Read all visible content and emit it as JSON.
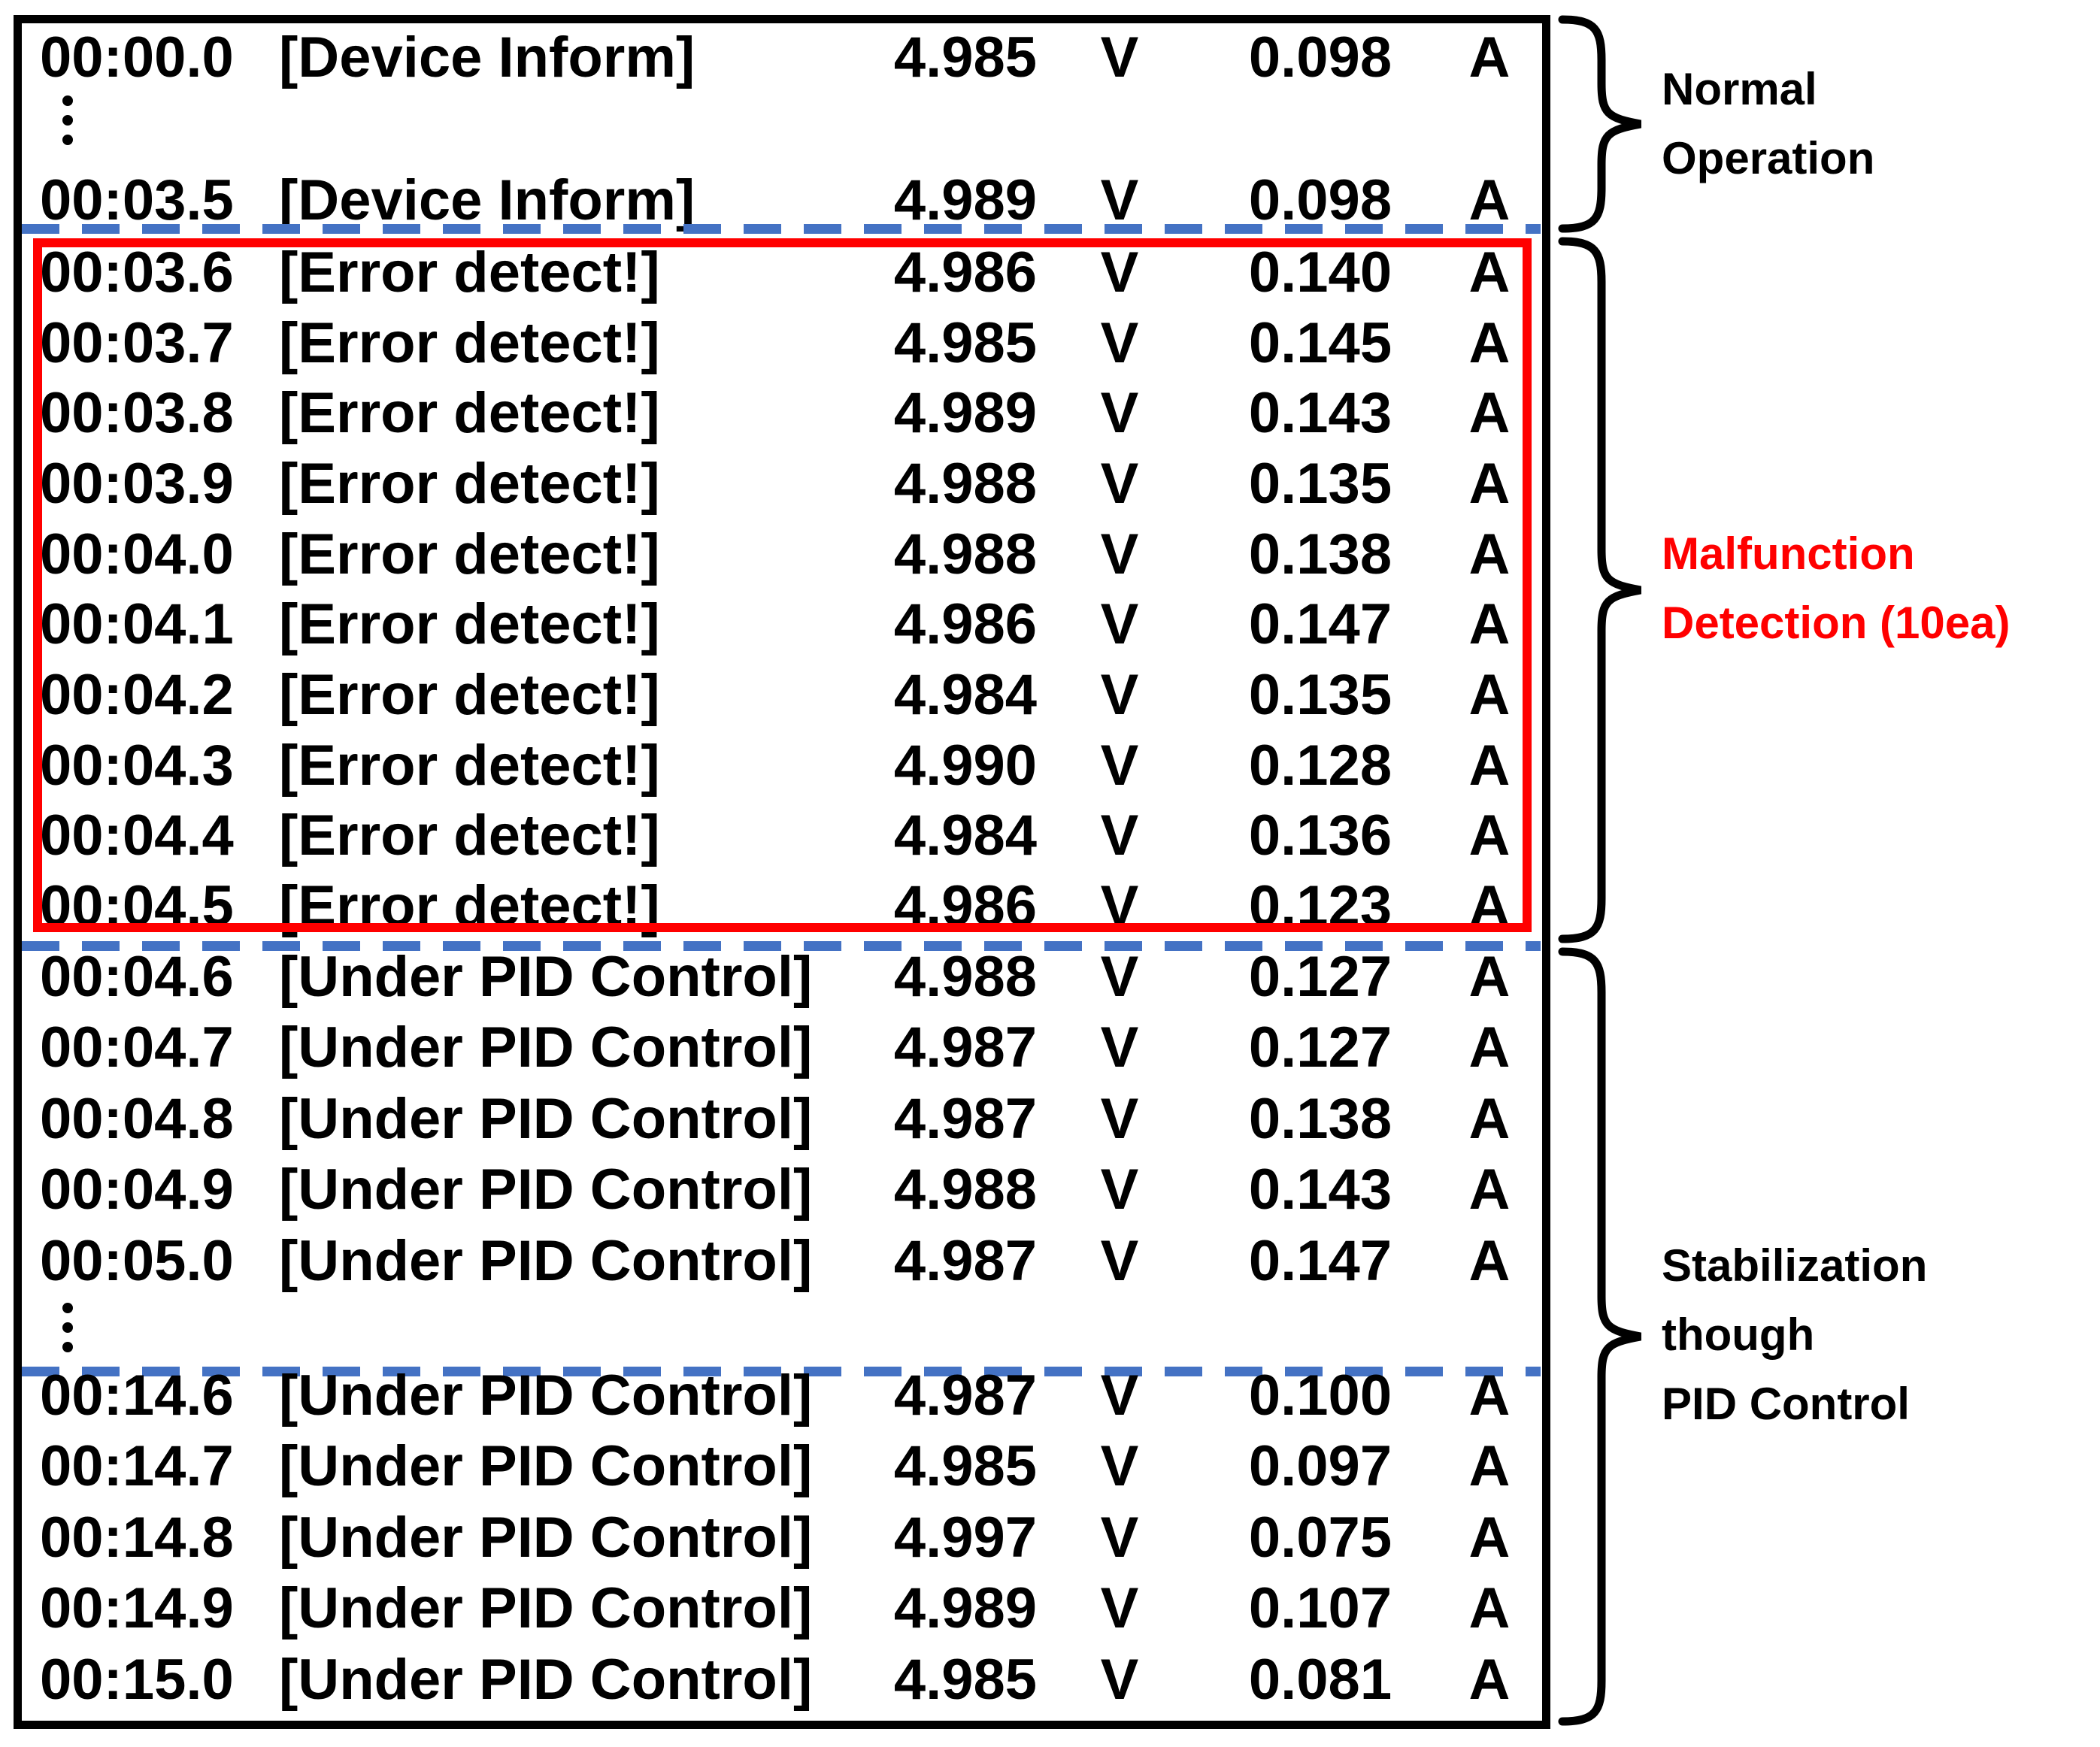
{
  "figure": {
    "units": {
      "voltage_unit": "V",
      "current_unit": "A"
    },
    "rows": [
      {
        "type": "data",
        "time": "00:00.0",
        "message": "[Device Inform]",
        "voltage": "4.985",
        "current": "0.098"
      },
      {
        "type": "ellipsis"
      },
      {
        "type": "data",
        "time": "00:03.5",
        "message": "[Device Inform]",
        "voltage": "4.989",
        "current": "0.098"
      },
      {
        "type": "divider"
      },
      {
        "type": "data",
        "time": "00:03.6",
        "message": "[Error detect!]",
        "voltage": "4.986",
        "current": "0.140"
      },
      {
        "type": "data",
        "time": "00:03.7",
        "message": "[Error detect!]",
        "voltage": "4.985",
        "current": "0.145"
      },
      {
        "type": "data",
        "time": "00:03.8",
        "message": "[Error detect!]",
        "voltage": "4.989",
        "current": "0.143"
      },
      {
        "type": "data",
        "time": "00:03.9",
        "message": "[Error detect!]",
        "voltage": "4.988",
        "current": "0.135"
      },
      {
        "type": "data",
        "time": "00:04.0",
        "message": "[Error detect!]",
        "voltage": "4.988",
        "current": "0.138"
      },
      {
        "type": "data",
        "time": "00:04.1",
        "message": "[Error detect!]",
        "voltage": "4.986",
        "current": "0.147"
      },
      {
        "type": "data",
        "time": "00:04.2",
        "message": "[Error detect!]",
        "voltage": "4.984",
        "current": "0.135"
      },
      {
        "type": "data",
        "time": "00:04.3",
        "message": "[Error detect!]",
        "voltage": "4.990",
        "current": "0.128"
      },
      {
        "type": "data",
        "time": "00:04.4",
        "message": "[Error detect!]",
        "voltage": "4.984",
        "current": "0.136"
      },
      {
        "type": "data",
        "time": "00:04.5",
        "message": "[Error detect!]",
        "voltage": "4.986",
        "current": "0.123"
      },
      {
        "type": "divider"
      },
      {
        "type": "data",
        "time": "00:04.6",
        "message": "[Under PID Control]",
        "voltage": "4.988",
        "current": "0.127"
      },
      {
        "type": "data",
        "time": "00:04.7",
        "message": "[Under PID Control]",
        "voltage": "4.987",
        "current": "0.127"
      },
      {
        "type": "data",
        "time": "00:04.8",
        "message": "[Under PID Control]",
        "voltage": "4.987",
        "current": "0.138"
      },
      {
        "type": "data",
        "time": "00:04.9",
        "message": "[Under PID Control]",
        "voltage": "4.988",
        "current": "0.143"
      },
      {
        "type": "data",
        "time": "00:05.0",
        "message": "[Under PID Control]",
        "voltage": "4.987",
        "current": "0.147"
      },
      {
        "type": "ellipsis"
      },
      {
        "type": "divider"
      },
      {
        "type": "data",
        "time": "00:14.6",
        "message": "[Under PID Control]",
        "voltage": "4.987",
        "current": "0.100"
      },
      {
        "type": "data",
        "time": "00:14.7",
        "message": "[Under PID Control]",
        "voltage": "4.985",
        "current": "0.097"
      },
      {
        "type": "data",
        "time": "00:14.8",
        "message": "[Under PID Control]",
        "voltage": "4.997",
        "current": "0.075"
      },
      {
        "type": "data",
        "time": "00:14.9",
        "message": "[Under PID Control]",
        "voltage": "4.989",
        "current": "0.107"
      },
      {
        "type": "data",
        "time": "00:15.0",
        "message": "[Under PID Control]",
        "voltage": "4.985",
        "current": "0.081"
      }
    ],
    "annotations": [
      {
        "id": "normal-operation",
        "lines": [
          "Normal",
          "Operation"
        ],
        "color": "#000000"
      },
      {
        "id": "malfunction-detection",
        "lines": [
          "Malfunction",
          "Detection (10ea)"
        ],
        "color": "#FF0000"
      },
      {
        "id": "stabilization-pid",
        "lines": [
          "Stabilization",
          "though",
          "PID Control"
        ],
        "color": "#000000"
      }
    ],
    "colors": {
      "divider_blue": "#4472C4",
      "highlight_red": "#FF0000",
      "border_black": "#000000"
    }
  }
}
